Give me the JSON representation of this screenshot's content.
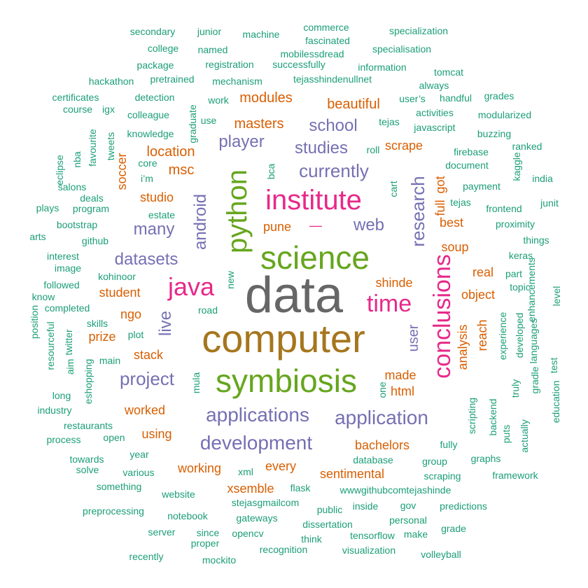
{
  "colors": {
    "green": "#1B9E77",
    "orange": "#D95F02",
    "purple": "#7570B3",
    "pink": "#E7298A",
    "lime": "#66A61E",
    "gold": "#A6761D",
    "gray": "#666666"
  },
  "words": [
    {
      "t": "data",
      "c": "gray"
    },
    {
      "t": "computer",
      "c": "gold"
    },
    {
      "t": "science",
      "c": "lime"
    },
    {
      "t": "python",
      "c": "lime"
    },
    {
      "t": "symbiosis",
      "c": "lime"
    },
    {
      "t": "institute",
      "c": "pink"
    },
    {
      "t": "java",
      "c": "pink"
    },
    {
      "t": "time",
      "c": "pink"
    },
    {
      "t": "conclusions",
      "c": "pink"
    },
    {
      "t": "application",
      "c": "purple"
    },
    {
      "t": "applications",
      "c": "purple"
    },
    {
      "t": "development",
      "c": "purple"
    },
    {
      "t": "project",
      "c": "purple"
    },
    {
      "t": "datasets",
      "c": "purple"
    },
    {
      "t": "many",
      "c": "purple"
    },
    {
      "t": "research",
      "c": "purple"
    },
    {
      "t": "currently",
      "c": "purple"
    },
    {
      "t": "android",
      "c": "purple"
    },
    {
      "t": "studies",
      "c": "purple"
    },
    {
      "t": "school",
      "c": "purple"
    },
    {
      "t": "player",
      "c": "purple"
    },
    {
      "t": "web",
      "c": "purple"
    },
    {
      "t": "live",
      "c": "purple"
    },
    {
      "t": "user",
      "c": "purple"
    },
    {
      "t": "masters",
      "c": "orange"
    },
    {
      "t": "modules",
      "c": "orange"
    },
    {
      "t": "beautiful",
      "c": "orange"
    },
    {
      "t": "location",
      "c": "orange"
    },
    {
      "t": "msc",
      "c": "orange"
    },
    {
      "t": "studio",
      "c": "orange"
    },
    {
      "t": "soccer",
      "c": "orange"
    },
    {
      "t": "scrape",
      "c": "orange"
    },
    {
      "t": "got",
      "c": "orange"
    },
    {
      "t": "full",
      "c": "orange"
    },
    {
      "t": "best",
      "c": "orange"
    },
    {
      "t": "soup",
      "c": "orange"
    },
    {
      "t": "pune",
      "c": "orange"
    },
    {
      "t": "—",
      "c": "pink"
    },
    {
      "t": "real",
      "c": "orange"
    },
    {
      "t": "shinde",
      "c": "orange"
    },
    {
      "t": "object",
      "c": "orange"
    },
    {
      "t": "student",
      "c": "orange"
    },
    {
      "t": "ngo",
      "c": "orange"
    },
    {
      "t": "prize",
      "c": "orange"
    },
    {
      "t": "stack",
      "c": "orange"
    },
    {
      "t": "reach",
      "c": "orange"
    },
    {
      "t": "analysis",
      "c": "orange"
    },
    {
      "t": "made",
      "c": "orange"
    },
    {
      "t": "html",
      "c": "orange"
    },
    {
      "t": "worked",
      "c": "orange"
    },
    {
      "t": "using",
      "c": "orange"
    },
    {
      "t": "bachelors",
      "c": "orange"
    },
    {
      "t": "working",
      "c": "orange"
    },
    {
      "t": "every",
      "c": "orange"
    },
    {
      "t": "sentimental",
      "c": "orange"
    },
    {
      "t": "xsemble",
      "c": "orange"
    },
    {
      "t": "secondary",
      "c": "green"
    },
    {
      "t": "junior",
      "c": "green"
    },
    {
      "t": "machine",
      "c": "green"
    },
    {
      "t": "commerce",
      "c": "green"
    },
    {
      "t": "specialization",
      "c": "green"
    },
    {
      "t": "college",
      "c": "green"
    },
    {
      "t": "named",
      "c": "green"
    },
    {
      "t": "fascinated",
      "c": "green"
    },
    {
      "t": "mobilessdread",
      "c": "green"
    },
    {
      "t": "specialisation",
      "c": "green"
    },
    {
      "t": "package",
      "c": "green"
    },
    {
      "t": "registration",
      "c": "green"
    },
    {
      "t": "successfully",
      "c": "green"
    },
    {
      "t": "information",
      "c": "green"
    },
    {
      "t": "tomcat",
      "c": "green"
    },
    {
      "t": "hackathon",
      "c": "green"
    },
    {
      "t": "pretrained",
      "c": "green"
    },
    {
      "t": "mechanism",
      "c": "green"
    },
    {
      "t": "tejasshindenullnet",
      "c": "green"
    },
    {
      "t": "always",
      "c": "green"
    },
    {
      "t": "certificates",
      "c": "green"
    },
    {
      "t": "detection",
      "c": "green"
    },
    {
      "t": "work",
      "c": "green"
    },
    {
      "t": "user’s",
      "c": "green"
    },
    {
      "t": "handful",
      "c": "green"
    },
    {
      "t": "grades",
      "c": "green"
    },
    {
      "t": "course",
      "c": "green"
    },
    {
      "t": "igx",
      "c": "green"
    },
    {
      "t": "colleague",
      "c": "green"
    },
    {
      "t": "use",
      "c": "green"
    },
    {
      "t": "tejas",
      "c": "green"
    },
    {
      "t": "activities",
      "c": "green"
    },
    {
      "t": "modularized",
      "c": "green"
    },
    {
      "t": "javascript",
      "c": "green"
    },
    {
      "t": "knowledge",
      "c": "green"
    },
    {
      "t": "buzzing",
      "c": "green"
    },
    {
      "t": "core",
      "c": "green"
    },
    {
      "t": "roll",
      "c": "green"
    },
    {
      "t": "firebase",
      "c": "green"
    },
    {
      "t": "ranked",
      "c": "green"
    },
    {
      "t": "document",
      "c": "green"
    },
    {
      "t": "i’m",
      "c": "green"
    },
    {
      "t": "india",
      "c": "green"
    },
    {
      "t": "salons",
      "c": "green"
    },
    {
      "t": "payment",
      "c": "green"
    },
    {
      "t": "deals",
      "c": "green"
    },
    {
      "t": "estate",
      "c": "green"
    },
    {
      "t": "tejas",
      "c": "green"
    },
    {
      "t": "junit",
      "c": "green"
    },
    {
      "t": "plays",
      "c": "green"
    },
    {
      "t": "program",
      "c": "green"
    },
    {
      "t": "frontend",
      "c": "green"
    },
    {
      "t": "bootstrap",
      "c": "green"
    },
    {
      "t": "proximity",
      "c": "green"
    },
    {
      "t": "arts",
      "c": "green"
    },
    {
      "t": "github",
      "c": "green"
    },
    {
      "t": "things",
      "c": "green"
    },
    {
      "t": "interest",
      "c": "green"
    },
    {
      "t": "keras",
      "c": "green"
    },
    {
      "t": "image",
      "c": "green"
    },
    {
      "t": "kohinoor",
      "c": "green"
    },
    {
      "t": "part",
      "c": "green"
    },
    {
      "t": "followed",
      "c": "green"
    },
    {
      "t": "topic",
      "c": "green"
    },
    {
      "t": "know",
      "c": "green"
    },
    {
      "t": "completed",
      "c": "green"
    },
    {
      "t": "road",
      "c": "green"
    },
    {
      "t": "skills",
      "c": "green"
    },
    {
      "t": "plot",
      "c": "green"
    },
    {
      "t": "main",
      "c": "green"
    },
    {
      "t": "long",
      "c": "green"
    },
    {
      "t": "industry",
      "c": "green"
    },
    {
      "t": "restaurants",
      "c": "green"
    },
    {
      "t": "process",
      "c": "green"
    },
    {
      "t": "open",
      "c": "green"
    },
    {
      "t": "fully",
      "c": "green"
    },
    {
      "t": "year",
      "c": "green"
    },
    {
      "t": "towards",
      "c": "green"
    },
    {
      "t": "solve",
      "c": "green"
    },
    {
      "t": "various",
      "c": "green"
    },
    {
      "t": "xml",
      "c": "green"
    },
    {
      "t": "database",
      "c": "green"
    },
    {
      "t": "group",
      "c": "green"
    },
    {
      "t": "graphs",
      "c": "green"
    },
    {
      "t": "scraping",
      "c": "green"
    },
    {
      "t": "framework",
      "c": "green"
    },
    {
      "t": "something",
      "c": "green"
    },
    {
      "t": "website",
      "c": "green"
    },
    {
      "t": "flask",
      "c": "green"
    },
    {
      "t": "wwwgithubcomtejashinde",
      "c": "green"
    },
    {
      "t": "preprocessing",
      "c": "green"
    },
    {
      "t": "stejasgmailcom",
      "c": "green"
    },
    {
      "t": "public",
      "c": "green"
    },
    {
      "t": "inside",
      "c": "green"
    },
    {
      "t": "gov",
      "c": "green"
    },
    {
      "t": "predictions",
      "c": "green"
    },
    {
      "t": "notebook",
      "c": "green"
    },
    {
      "t": "gateways",
      "c": "green"
    },
    {
      "t": "dissertation",
      "c": "green"
    },
    {
      "t": "personal",
      "c": "green"
    },
    {
      "t": "grade",
      "c": "green"
    },
    {
      "t": "server",
      "c": "green"
    },
    {
      "t": "since",
      "c": "green"
    },
    {
      "t": "opencv",
      "c": "green"
    },
    {
      "t": "think",
      "c": "green"
    },
    {
      "t": "tensorflow",
      "c": "green"
    },
    {
      "t": "make",
      "c": "green"
    },
    {
      "t": "proper",
      "c": "green"
    },
    {
      "t": "recognition",
      "c": "green"
    },
    {
      "t": "visualization",
      "c": "green"
    },
    {
      "t": "recently",
      "c": "green"
    },
    {
      "t": "mockito",
      "c": "green"
    },
    {
      "t": "volleyball",
      "c": "green"
    },
    {
      "t": "graduate",
      "c": "green"
    },
    {
      "t": "favourite",
      "c": "green"
    },
    {
      "t": "tweets",
      "c": "green"
    },
    {
      "t": "nba",
      "c": "green"
    },
    {
      "t": "eclipse",
      "c": "green"
    },
    {
      "t": "bca",
      "c": "green"
    },
    {
      "t": "cart",
      "c": "green"
    },
    {
      "t": "kaggle",
      "c": "green"
    },
    {
      "t": "new",
      "c": "green"
    },
    {
      "t": "enhancements",
      "c": "green"
    },
    {
      "t": "level",
      "c": "green"
    },
    {
      "t": "position",
      "c": "green"
    },
    {
      "t": "resourceful",
      "c": "green"
    },
    {
      "t": "twitter",
      "c": "green"
    },
    {
      "t": "aim",
      "c": "green"
    },
    {
      "t": "eshopping",
      "c": "green"
    },
    {
      "t": "mula",
      "c": "green"
    },
    {
      "t": "one",
      "c": "green"
    },
    {
      "t": "experience",
      "c": "green"
    },
    {
      "t": "developed",
      "c": "green"
    },
    {
      "t": "languages",
      "c": "green"
    },
    {
      "t": "education",
      "c": "green"
    },
    {
      "t": "gradle",
      "c": "green"
    },
    {
      "t": "test",
      "c": "green"
    },
    {
      "t": "truly",
      "c": "green"
    },
    {
      "t": "scripting",
      "c": "green"
    },
    {
      "t": "backend",
      "c": "green"
    },
    {
      "t": "puts",
      "c": "green"
    },
    {
      "t": "actually",
      "c": "green"
    }
  ]
}
